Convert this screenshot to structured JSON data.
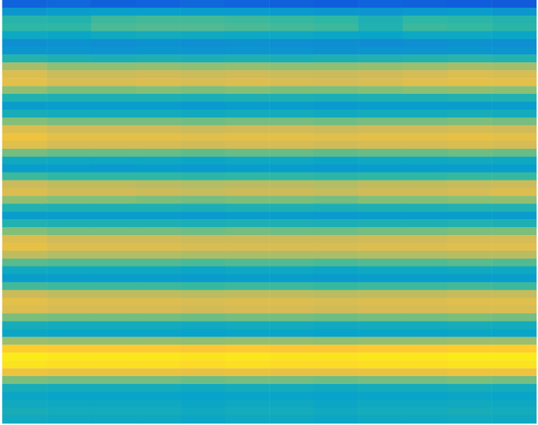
{
  "chart_data": {
    "type": "heatmap",
    "tick_labels": false,
    "color_range": [
      0,
      100
    ],
    "cells": [
      [
        15,
        16,
        14,
        15,
        16,
        15,
        14,
        13,
        15,
        14,
        13,
        12
      ],
      [
        33,
        35,
        36,
        36,
        35,
        35,
        34,
        33,
        32,
        34,
        35,
        33
      ],
      [
        48,
        47,
        52,
        53,
        53,
        52,
        51,
        50,
        45,
        50,
        49,
        47
      ],
      [
        50,
        50,
        54,
        55,
        55,
        54,
        53,
        52,
        46,
        52,
        51,
        49
      ],
      [
        40,
        39,
        41,
        42,
        41,
        40,
        40,
        39,
        38,
        40,
        40,
        39
      ],
      [
        30,
        31,
        30,
        31,
        30,
        31,
        30,
        30,
        29,
        30,
        31,
        30
      ],
      [
        33,
        32,
        32,
        33,
        32,
        32,
        32,
        31,
        32,
        32,
        33,
        32
      ],
      [
        47,
        45,
        44,
        45,
        44,
        45,
        44,
        45,
        46,
        47,
        48,
        47
      ],
      [
        68,
        64,
        64,
        65,
        64,
        65,
        64,
        64,
        65,
        66,
        68,
        67
      ],
      [
        78,
        74,
        74,
        75,
        74,
        75,
        74,
        74,
        75,
        76,
        78,
        77
      ],
      [
        80,
        77,
        77,
        78,
        77,
        78,
        77,
        76,
        77,
        79,
        80,
        80
      ],
      [
        64,
        61,
        61,
        62,
        61,
        62,
        61,
        61,
        62,
        63,
        64,
        63
      ],
      [
        46,
        45,
        45,
        45,
        44,
        45,
        45,
        44,
        45,
        45,
        46,
        46
      ],
      [
        35,
        35,
        35,
        35,
        34,
        35,
        35,
        34,
        35,
        35,
        35,
        35
      ],
      [
        43,
        42,
        42,
        42,
        41,
        42,
        42,
        41,
        42,
        42,
        43,
        42
      ],
      [
        62,
        60,
        60,
        60,
        59,
        60,
        60,
        59,
        60,
        60,
        61,
        60
      ],
      [
        78,
        75,
        75,
        75,
        74,
        75,
        75,
        74,
        75,
        75,
        76,
        75
      ],
      [
        83,
        80,
        80,
        80,
        79,
        80,
        80,
        79,
        80,
        80,
        81,
        80
      ],
      [
        79,
        76,
        76,
        76,
        75,
        76,
        76,
        75,
        76,
        76,
        77,
        76
      ],
      [
        60,
        58,
        58,
        58,
        57,
        58,
        58,
        57,
        58,
        58,
        59,
        58
      ],
      [
        41,
        40,
        40,
        40,
        39,
        40,
        40,
        39,
        40,
        40,
        41,
        40
      ],
      [
        35,
        35,
        34,
        35,
        34,
        35,
        35,
        34,
        35,
        35,
        35,
        35
      ],
      [
        52,
        50,
        50,
        50,
        49,
        50,
        50,
        49,
        50,
        50,
        51,
        51
      ],
      [
        74,
        72,
        72,
        71,
        70,
        71,
        71,
        70,
        72,
        72,
        73,
        74
      ],
      [
        78,
        75,
        75,
        74,
        73,
        74,
        74,
        73,
        75,
        75,
        76,
        78
      ],
      [
        64,
        62,
        62,
        61,
        60,
        61,
        61,
        60,
        62,
        62,
        63,
        64
      ],
      [
        46,
        45,
        45,
        45,
        44,
        45,
        45,
        44,
        45,
        45,
        46,
        46
      ],
      [
        35,
        35,
        35,
        35,
        34,
        35,
        35,
        34,
        35,
        35,
        35,
        35
      ],
      [
        46,
        45,
        45,
        45,
        44,
        45,
        45,
        44,
        45,
        45,
        46,
        45
      ],
      [
        62,
        60,
        60,
        60,
        59,
        60,
        59,
        59,
        60,
        60,
        61,
        61
      ],
      [
        78,
        75,
        75,
        75,
        74,
        74,
        74,
        74,
        75,
        75,
        76,
        76
      ],
      [
        81,
        78,
        78,
        78,
        77,
        77,
        77,
        77,
        78,
        78,
        79,
        79
      ],
      [
        72,
        70,
        70,
        70,
        69,
        69,
        69,
        69,
        70,
        70,
        71,
        71
      ],
      [
        56,
        55,
        55,
        55,
        54,
        55,
        55,
        54,
        55,
        55,
        56,
        55
      ],
      [
        41,
        40,
        40,
        40,
        39,
        40,
        40,
        39,
        40,
        40,
        41,
        40
      ],
      [
        35,
        35,
        35,
        35,
        34,
        35,
        35,
        34,
        35,
        35,
        35,
        35
      ],
      [
        53,
        52,
        52,
        52,
        51,
        52,
        52,
        51,
        52,
        52,
        53,
        52
      ],
      [
        74,
        72,
        72,
        72,
        71,
        72,
        72,
        71,
        72,
        72,
        73,
        73
      ],
      [
        80,
        78,
        78,
        78,
        77,
        78,
        78,
        77,
        78,
        78,
        79,
        79
      ],
      [
        78,
        76,
        76,
        76,
        75,
        76,
        76,
        75,
        76,
        76,
        77,
        77
      ],
      [
        61,
        60,
        60,
        60,
        59,
        60,
        60,
        59,
        60,
        60,
        61,
        60
      ],
      [
        43,
        42,
        42,
        42,
        41,
        42,
        42,
        41,
        42,
        42,
        43,
        42
      ],
      [
        39,
        38,
        38,
        38,
        37,
        38,
        38,
        37,
        38,
        38,
        39,
        38
      ],
      [
        66,
        65,
        65,
        65,
        64,
        65,
        65,
        64,
        65,
        65,
        66,
        66
      ],
      [
        89,
        88,
        88,
        88,
        87,
        88,
        87,
        87,
        88,
        88,
        89,
        89
      ],
      [
        96,
        95,
        95,
        95,
        94,
        95,
        94,
        94,
        95,
        95,
        96,
        96
      ],
      [
        94,
        93,
        93,
        93,
        92,
        93,
        92,
        92,
        93,
        93,
        94,
        94
      ],
      [
        83,
        82,
        82,
        82,
        81,
        82,
        81,
        81,
        82,
        82,
        83,
        83
      ],
      [
        61,
        60,
        60,
        60,
        59,
        60,
        60,
        59,
        60,
        60,
        61,
        60
      ],
      [
        43,
        42,
        42,
        42,
        41,
        42,
        42,
        41,
        42,
        42,
        43,
        42
      ],
      [
        39,
        38,
        38,
        38,
        37,
        38,
        38,
        37,
        38,
        38,
        39,
        38
      ],
      [
        41,
        40,
        40,
        40,
        39,
        40,
        40,
        39,
        40,
        40,
        41,
        40
      ],
      [
        43,
        42,
        42,
        42,
        41,
        42,
        42,
        41,
        42,
        42,
        43,
        42
      ],
      [
        41,
        40,
        40,
        40,
        39,
        40,
        40,
        39,
        40,
        40,
        41,
        40
      ]
    ]
  }
}
